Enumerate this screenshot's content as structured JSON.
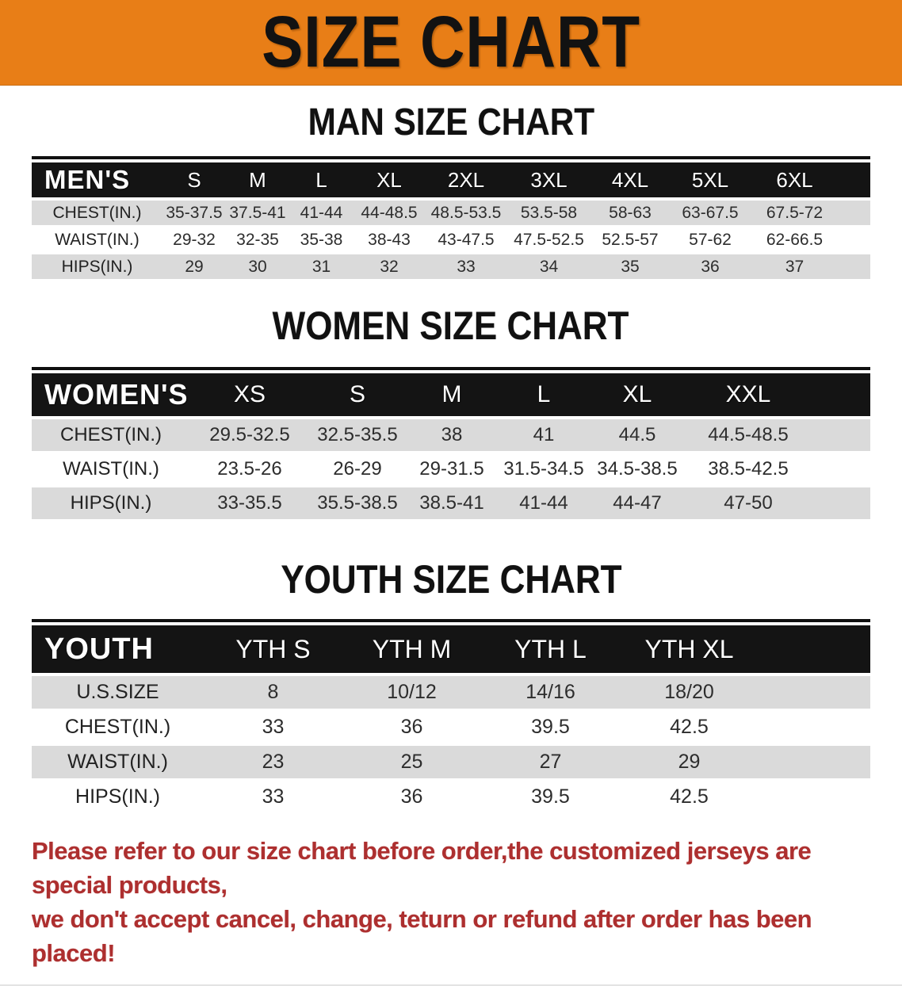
{
  "banner": {
    "title": "SIZE CHART",
    "bg": "#E87E17"
  },
  "sections": [
    {
      "title": "MAN SIZE CHART",
      "header_label": "MEN'S",
      "columns": [
        "S",
        "M",
        "L",
        "XL",
        "2XL",
        "3XL",
        "4XL",
        "5XL",
        "6XL"
      ],
      "rows": [
        {
          "label": "CHEST(IN.)",
          "values": [
            "35-37.5",
            "37.5-41",
            "41-44",
            "44-48.5",
            "48.5-53.5",
            "53.5-58",
            "58-63",
            "63-67.5",
            "67.5-72"
          ]
        },
        {
          "label": "WAIST(IN.)",
          "values": [
            "29-32",
            "32-35",
            "35-38",
            "38-43",
            "43-47.5",
            "47.5-52.5",
            "52.5-57",
            "57-62",
            "62-66.5"
          ]
        },
        {
          "label": "HIPS(IN.)",
          "values": [
            "29",
            "30",
            "31",
            "32",
            "33",
            "34",
            "35",
            "36",
            "37"
          ]
        }
      ]
    },
    {
      "title": "WOMEN SIZE CHART",
      "header_label": "WOMEN'S",
      "columns": [
        "XS",
        "S",
        "M",
        "L",
        "XL",
        "XXL"
      ],
      "rows": [
        {
          "label": "CHEST(IN.)",
          "values": [
            "29.5-32.5",
            "32.5-35.5",
            "38",
            "41",
            "44.5",
            "44.5-48.5"
          ]
        },
        {
          "label": "WAIST(IN.)",
          "values": [
            "23.5-26",
            "26-29",
            "29-31.5",
            "31.5-34.5",
            "34.5-38.5",
            "38.5-42.5"
          ]
        },
        {
          "label": "HIPS(IN.)",
          "values": [
            "33-35.5",
            "35.5-38.5",
            "38.5-41",
            "41-44",
            "44-47",
            "47-50"
          ]
        }
      ]
    },
    {
      "title": "YOUTH SIZE CHART",
      "header_label": "YOUTH",
      "columns": [
        "YTH S",
        "YTH M",
        "YTH L",
        "YTH XL"
      ],
      "rows": [
        {
          "label": "U.S.SIZE",
          "values": [
            "8",
            "10/12",
            "14/16",
            "18/20"
          ]
        },
        {
          "label": "CHEST(IN.)",
          "values": [
            "33",
            "36",
            "39.5",
            "42.5"
          ]
        },
        {
          "label": "WAIST(IN.)",
          "values": [
            "23",
            "25",
            "27",
            "29"
          ]
        },
        {
          "label": "HIPS(IN.)",
          "values": [
            "33",
            "36",
            "39.5",
            "42.5"
          ]
        }
      ]
    }
  ],
  "footer": {
    "color": "#AD2F2F",
    "line1": "Please refer to our size chart before order,the customized jerseys are special products,",
    "line2": "we don't accept cancel, change, teturn or refund after order has been placed!"
  }
}
